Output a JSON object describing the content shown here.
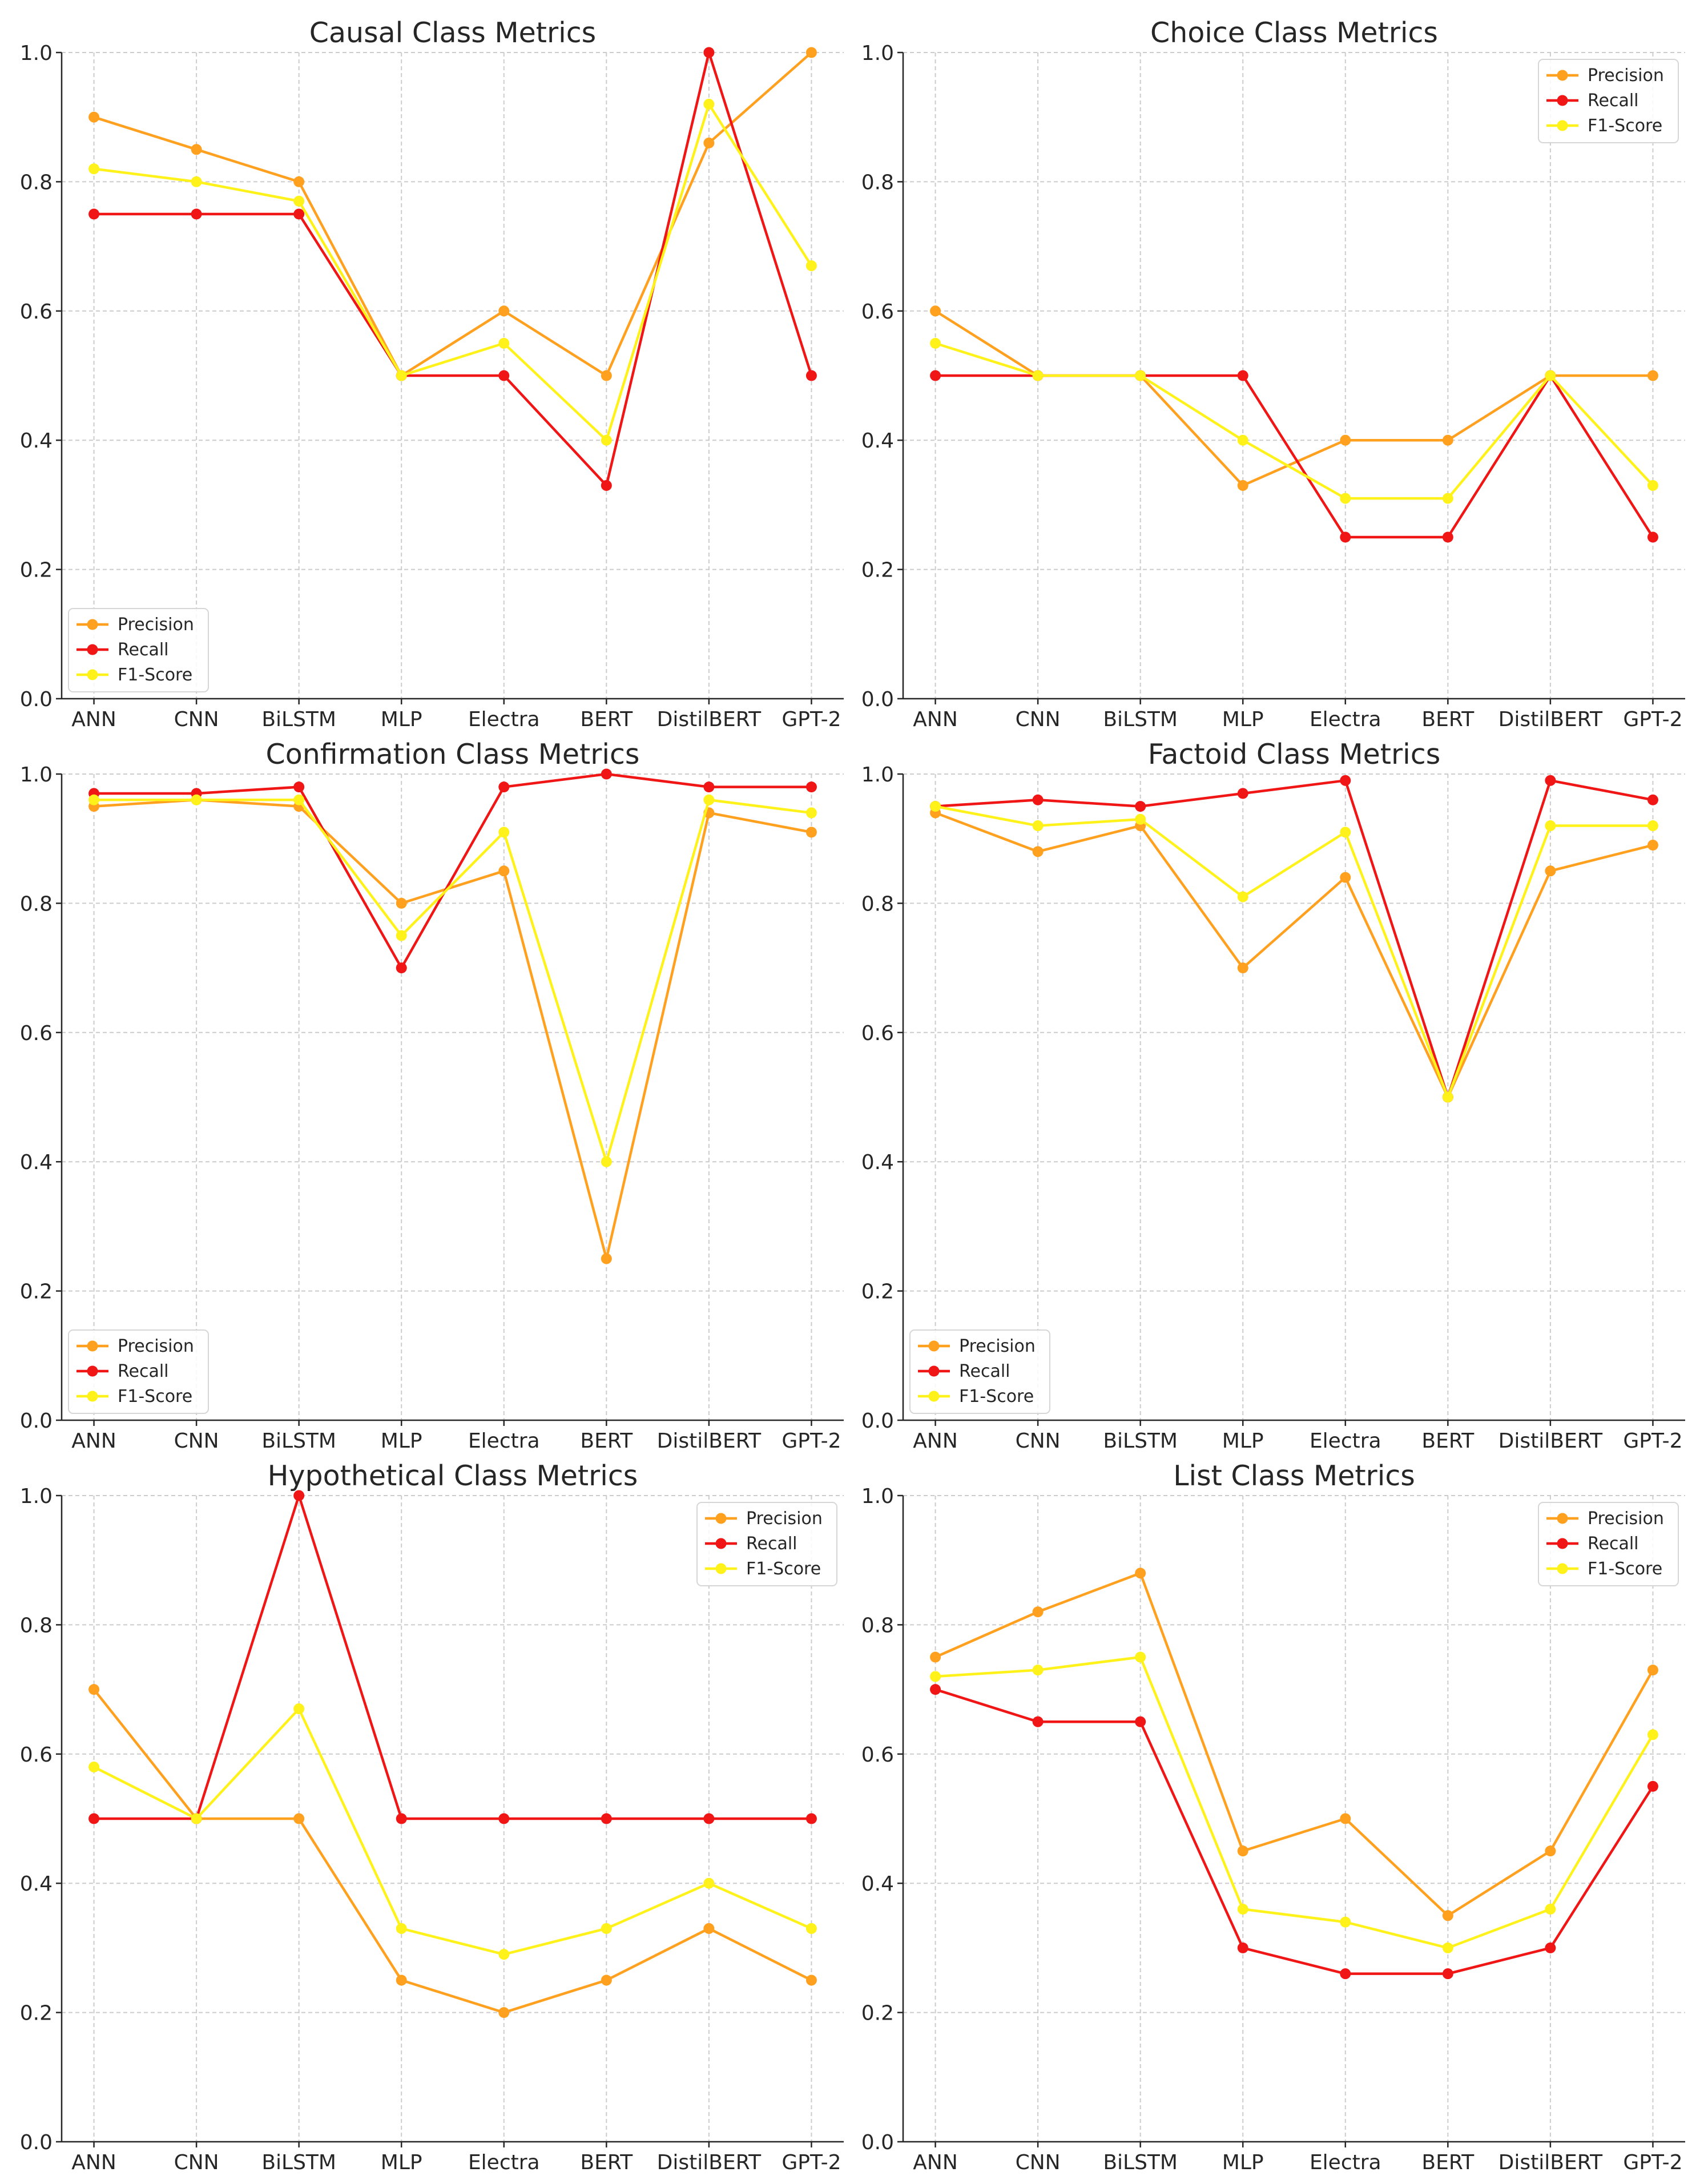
{
  "colors": {
    "Precision": "#FFA01F",
    "Recall": "#F01616",
    "F1-Score": "#FFF21A"
  },
  "chart_data": [
    {
      "type": "line",
      "title": "Causal Class Metrics",
      "categories": [
        "ANN",
        "CNN",
        "BiLSTM",
        "MLP",
        "Electra",
        "BERT",
        "DistilBERT",
        "GPT-2"
      ],
      "ylim": [
        0,
        1
      ],
      "yticks": [
        "0.0",
        "0.2",
        "0.4",
        "0.6",
        "0.8",
        "1.0"
      ],
      "grid": true,
      "legend": "lower-left",
      "series": [
        {
          "name": "Precision",
          "values": [
            0.9,
            0.85,
            0.8,
            0.5,
            0.6,
            0.5,
            0.86,
            1.0
          ]
        },
        {
          "name": "Recall",
          "values": [
            0.75,
            0.75,
            0.75,
            0.5,
            0.5,
            0.33,
            1.0,
            0.5
          ]
        },
        {
          "name": "F1-Score",
          "values": [
            0.82,
            0.8,
            0.77,
            0.5,
            0.55,
            0.4,
            0.92,
            0.67
          ]
        }
      ]
    },
    {
      "type": "line",
      "title": "Choice Class Metrics",
      "categories": [
        "ANN",
        "CNN",
        "BiLSTM",
        "MLP",
        "Electra",
        "BERT",
        "DistilBERT",
        "GPT-2"
      ],
      "ylim": [
        0,
        1
      ],
      "yticks": [
        "0.0",
        "0.2",
        "0.4",
        "0.6",
        "0.8",
        "1.0"
      ],
      "grid": true,
      "legend": "upper-right",
      "series": [
        {
          "name": "Precision",
          "values": [
            0.6,
            0.5,
            0.5,
            0.33,
            0.4,
            0.4,
            0.5,
            0.5
          ]
        },
        {
          "name": "Recall",
          "values": [
            0.5,
            0.5,
            0.5,
            0.5,
            0.25,
            0.25,
            0.5,
            0.25
          ]
        },
        {
          "name": "F1-Score",
          "values": [
            0.55,
            0.5,
            0.5,
            0.4,
            0.31,
            0.31,
            0.5,
            0.33
          ]
        }
      ]
    },
    {
      "type": "line",
      "title": "Confirmation Class Metrics",
      "categories": [
        "ANN",
        "CNN",
        "BiLSTM",
        "MLP",
        "Electra",
        "BERT",
        "DistilBERT",
        "GPT-2"
      ],
      "ylim": [
        0,
        1
      ],
      "yticks": [
        "0.0",
        "0.2",
        "0.4",
        "0.6",
        "0.8",
        "1.0"
      ],
      "grid": true,
      "legend": "lower-left",
      "series": [
        {
          "name": "Precision",
          "values": [
            0.95,
            0.96,
            0.95,
            0.8,
            0.85,
            0.25,
            0.94,
            0.91
          ]
        },
        {
          "name": "Recall",
          "values": [
            0.97,
            0.97,
            0.98,
            0.7,
            0.98,
            1.0,
            0.98,
            0.98
          ]
        },
        {
          "name": "F1-Score",
          "values": [
            0.96,
            0.96,
            0.96,
            0.75,
            0.91,
            0.4,
            0.96,
            0.94
          ]
        }
      ]
    },
    {
      "type": "line",
      "title": "Factoid Class Metrics",
      "categories": [
        "ANN",
        "CNN",
        "BiLSTM",
        "MLP",
        "Electra",
        "BERT",
        "DistilBERT",
        "GPT-2"
      ],
      "ylim": [
        0,
        1
      ],
      "yticks": [
        "0.0",
        "0.2",
        "0.4",
        "0.6",
        "0.8",
        "1.0"
      ],
      "grid": true,
      "legend": "lower-left",
      "series": [
        {
          "name": "Precision",
          "values": [
            0.94,
            0.88,
            0.92,
            0.7,
            0.84,
            0.5,
            0.85,
            0.89
          ]
        },
        {
          "name": "Recall",
          "values": [
            0.95,
            0.96,
            0.95,
            0.97,
            0.99,
            0.5,
            0.99,
            0.96
          ]
        },
        {
          "name": "F1-Score",
          "values": [
            0.95,
            0.92,
            0.93,
            0.81,
            0.91,
            0.5,
            0.92,
            0.92
          ]
        }
      ]
    },
    {
      "type": "line",
      "title": "Hypothetical Class Metrics",
      "categories": [
        "ANN",
        "CNN",
        "BiLSTM",
        "MLP",
        "Electra",
        "BERT",
        "DistilBERT",
        "GPT-2"
      ],
      "ylim": [
        0,
        1
      ],
      "yticks": [
        "0.0",
        "0.2",
        "0.4",
        "0.6",
        "0.8",
        "1.0"
      ],
      "grid": true,
      "legend": "upper-right",
      "series": [
        {
          "name": "Precision",
          "values": [
            0.7,
            0.5,
            0.5,
            0.25,
            0.2,
            0.25,
            0.33,
            0.25
          ]
        },
        {
          "name": "Recall",
          "values": [
            0.5,
            0.5,
            1.0,
            0.5,
            0.5,
            0.5,
            0.5,
            0.5
          ]
        },
        {
          "name": "F1-Score",
          "values": [
            0.58,
            0.5,
            0.67,
            0.33,
            0.29,
            0.33,
            0.4,
            0.33
          ]
        }
      ]
    },
    {
      "type": "line",
      "title": "List Class Metrics",
      "categories": [
        "ANN",
        "CNN",
        "BiLSTM",
        "MLP",
        "Electra",
        "BERT",
        "DistilBERT",
        "GPT-2"
      ],
      "ylim": [
        0,
        1
      ],
      "yticks": [
        "0.0",
        "0.2",
        "0.4",
        "0.6",
        "0.8",
        "1.0"
      ],
      "grid": true,
      "legend": "upper-right",
      "series": [
        {
          "name": "Precision",
          "values": [
            0.75,
            0.82,
            0.88,
            0.45,
            0.5,
            0.35,
            0.45,
            0.73
          ]
        },
        {
          "name": "Recall",
          "values": [
            0.7,
            0.65,
            0.65,
            0.3,
            0.26,
            0.26,
            0.3,
            0.55
          ]
        },
        {
          "name": "F1-Score",
          "values": [
            0.72,
            0.73,
            0.75,
            0.36,
            0.34,
            0.3,
            0.36,
            0.63
          ]
        }
      ]
    }
  ]
}
